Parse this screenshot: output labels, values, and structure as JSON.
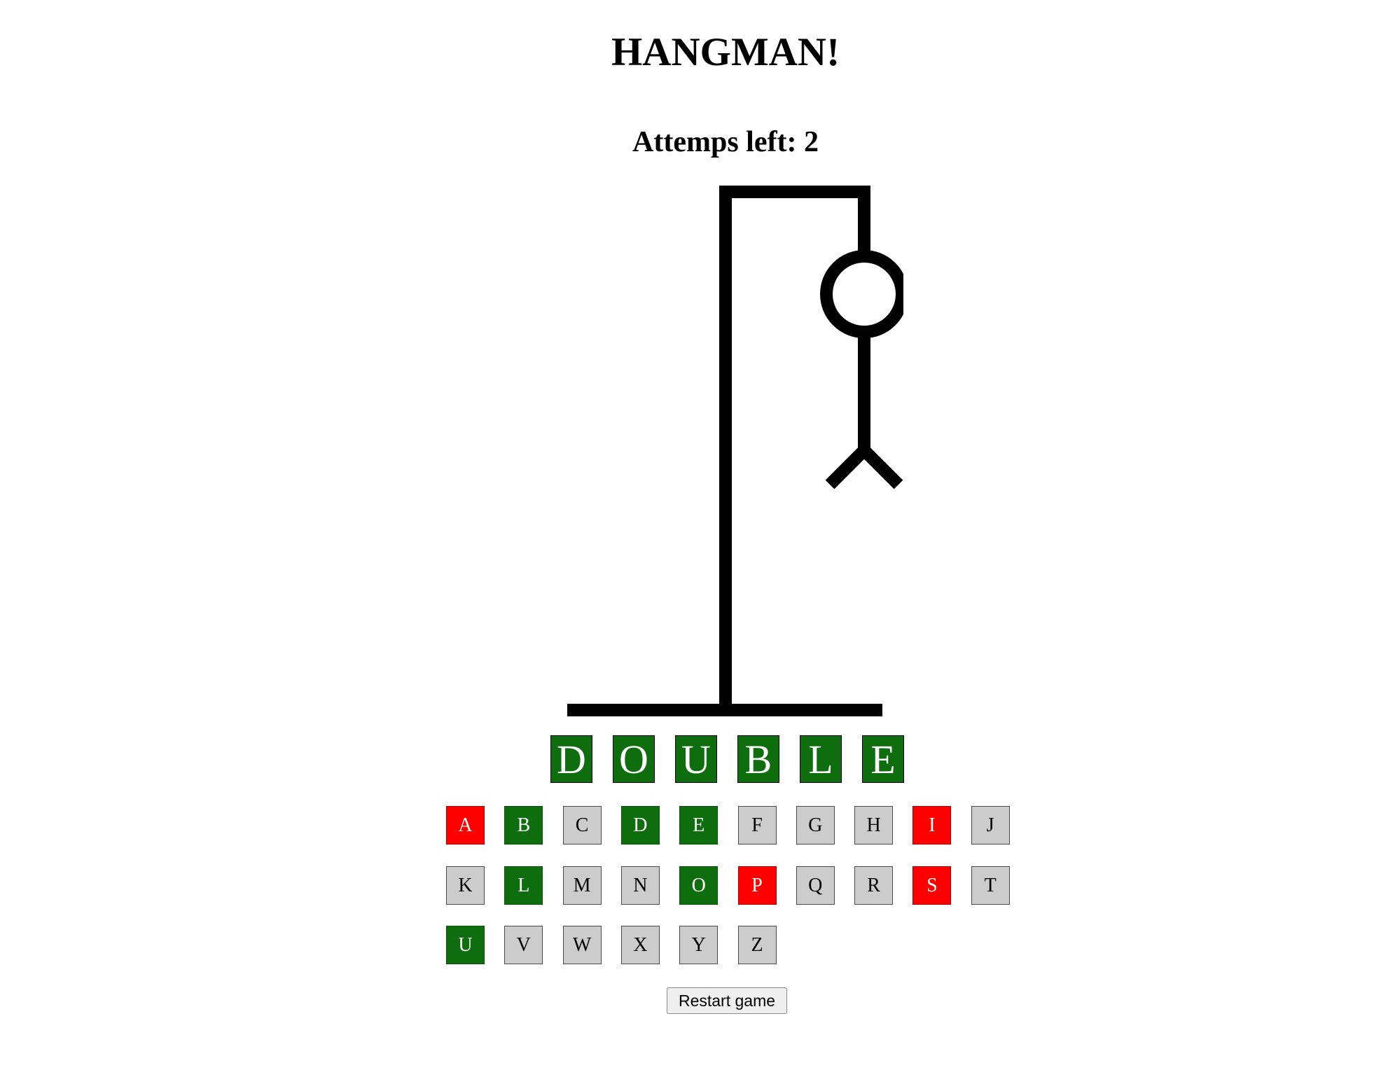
{
  "game": {
    "title": "HANGMAN!",
    "attempts_text": "Attemps left: 2",
    "attempts_left": 2
  },
  "word": {
    "letters": [
      "D",
      "O",
      "U",
      "B",
      "L",
      "E"
    ],
    "tile_color": "#0e6e0e"
  },
  "keyboard": {
    "keys": [
      {
        "letter": "A",
        "state": "wrong"
      },
      {
        "letter": "B",
        "state": "correct"
      },
      {
        "letter": "C",
        "state": "neutral"
      },
      {
        "letter": "D",
        "state": "correct"
      },
      {
        "letter": "E",
        "state": "correct"
      },
      {
        "letter": "F",
        "state": "neutral"
      },
      {
        "letter": "G",
        "state": "neutral"
      },
      {
        "letter": "H",
        "state": "neutral"
      },
      {
        "letter": "I",
        "state": "wrong"
      },
      {
        "letter": "J",
        "state": "neutral"
      },
      {
        "letter": "K",
        "state": "neutral"
      },
      {
        "letter": "L",
        "state": "correct"
      },
      {
        "letter": "M",
        "state": "neutral"
      },
      {
        "letter": "N",
        "state": "neutral"
      },
      {
        "letter": "O",
        "state": "correct"
      },
      {
        "letter": "P",
        "state": "wrong"
      },
      {
        "letter": "Q",
        "state": "neutral"
      },
      {
        "letter": "R",
        "state": "neutral"
      },
      {
        "letter": "S",
        "state": "wrong"
      },
      {
        "letter": "T",
        "state": "neutral"
      },
      {
        "letter": "U",
        "state": "correct"
      },
      {
        "letter": "V",
        "state": "neutral"
      },
      {
        "letter": "W",
        "state": "neutral"
      },
      {
        "letter": "X",
        "state": "neutral"
      },
      {
        "letter": "Y",
        "state": "neutral"
      },
      {
        "letter": "Z",
        "state": "neutral"
      }
    ]
  },
  "restart": {
    "label": "Restart game"
  },
  "colors": {
    "correct": "#0e6e0e",
    "wrong": "#ff0000",
    "neutral": "#cccccc"
  }
}
